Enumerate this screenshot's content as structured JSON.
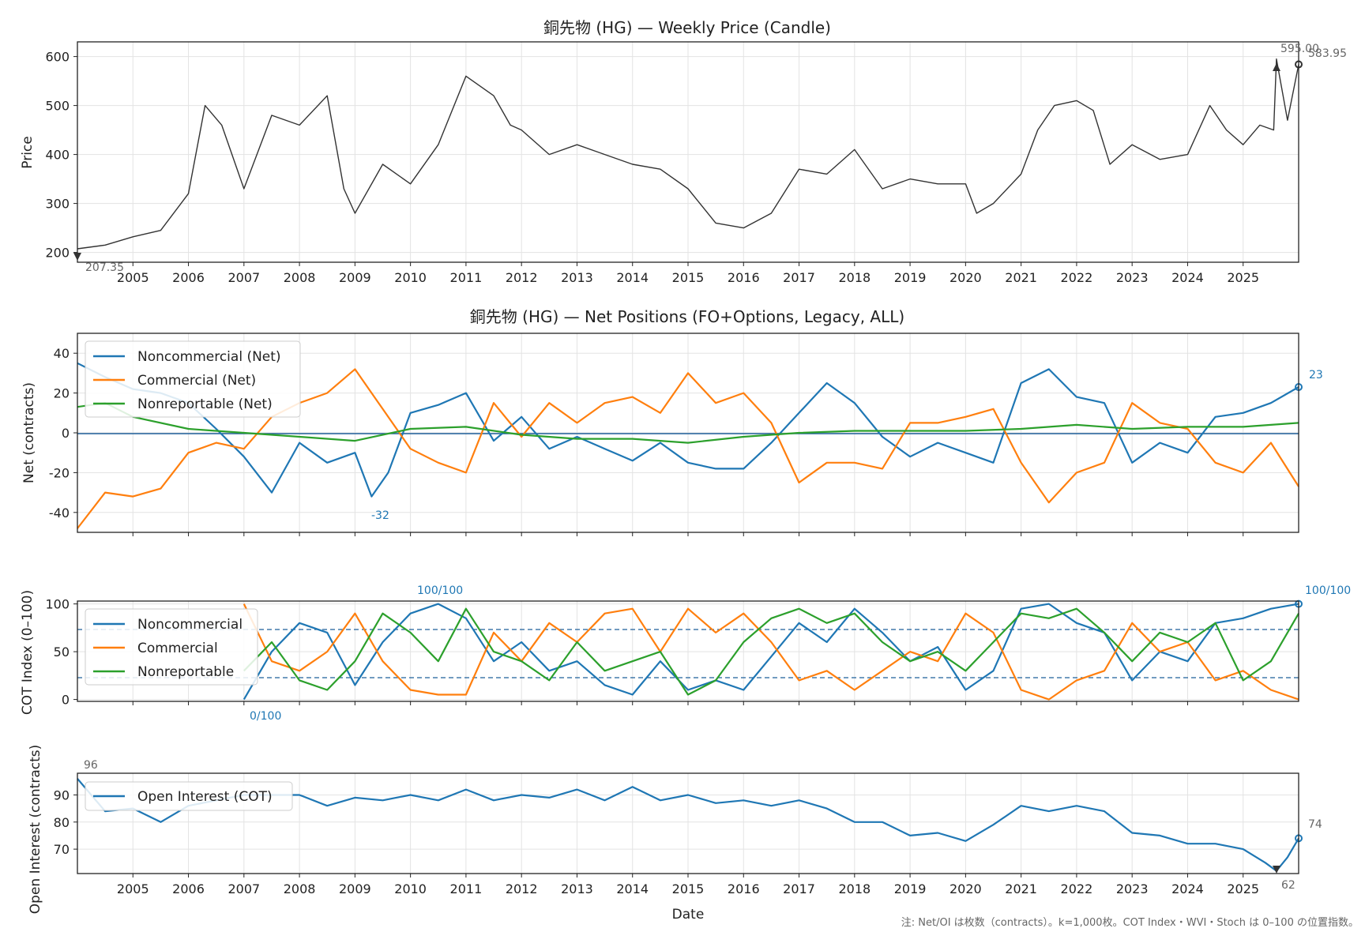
{
  "figure": {
    "note": "注: Net/OI は枚数（contracts）。k=1,000枚。COT Index・WVI・Stoch は 0–100 の位置指数。",
    "xlabel": "Date"
  },
  "colors": {
    "noncommercial": "#1f77b4",
    "commercial": "#ff7f0e",
    "nonreportable": "#2ca02c",
    "price": "#333333",
    "oi": "#1f77b4"
  },
  "chart_data": [
    {
      "type": "line",
      "title": "銅先物 (HG) — Weekly Price (Candle)",
      "ylabel": "Price",
      "xlim": [
        2004.0,
        2026.0
      ],
      "ylim": [
        180,
        630
      ],
      "yticks": [
        200,
        300,
        400,
        500,
        600
      ],
      "xticks": [
        "2005",
        "2006",
        "2007",
        "2008",
        "2009",
        "2010",
        "2011",
        "2012",
        "2013",
        "2014",
        "2015",
        "2016",
        "2017",
        "2018",
        "2019",
        "2020",
        "2021",
        "2022",
        "2023",
        "2024",
        "2025"
      ],
      "grid": true,
      "series": [
        {
          "x": [
            2004.0,
            2004.5,
            2005.0,
            2005.5,
            2006.0,
            2006.3,
            2006.6,
            2007.0,
            2007.5,
            2008.0,
            2008.5,
            2008.8,
            2009.0,
            2009.5,
            2010.0,
            2010.5,
            2011.0,
            2011.5,
            2011.8,
            2012.0,
            2012.5,
            2013.0,
            2013.5,
            2014.0,
            2014.5,
            2015.0,
            2015.5,
            2016.0,
            2016.5,
            2017.0,
            2017.5,
            2018.0,
            2018.5,
            2019.0,
            2019.5,
            2020.0,
            2020.2,
            2020.5,
            2021.0,
            2021.3,
            2021.6,
            2022.0,
            2022.3,
            2022.6,
            2023.0,
            2023.5,
            2024.0,
            2024.4,
            2024.7,
            2025.0,
            2025.3,
            2025.55,
            2025.6,
            2025.8,
            2026.0
          ],
          "values": [
            207.35,
            215,
            232,
            245,
            320,
            500,
            460,
            330,
            480,
            460,
            520,
            330,
            280,
            380,
            340,
            420,
            560,
            520,
            460,
            450,
            400,
            420,
            400,
            380,
            370,
            330,
            260,
            250,
            280,
            370,
            360,
            410,
            330,
            350,
            340,
            340,
            280,
            300,
            360,
            450,
            500,
            510,
            490,
            380,
            420,
            390,
            400,
            500,
            450,
            420,
            460,
            450,
            595,
            470,
            583.95
          ]
        }
      ],
      "annotations": {
        "start": "207.35",
        "high": "595.00",
        "last": "583.95"
      }
    },
    {
      "type": "line",
      "title": "銅先物 (HG) — Net Positions (FO+Options, Legacy, ALL)",
      "ylabel": "Net (contracts)",
      "xlim": [
        2004.0,
        2026.0
      ],
      "ylim": [
        -50,
        50
      ],
      "yticks": [
        -40,
        -20,
        0,
        20,
        40
      ],
      "grid": true,
      "legend": "upper-left",
      "series": [
        {
          "name": "Noncommercial (Net)",
          "x": [
            2004.0,
            2004.5,
            2005.0,
            2005.5,
            2006.0,
            2006.5,
            2007.0,
            2007.5,
            2008.0,
            2008.5,
            2009.0,
            2009.3,
            2009.6,
            2010.0,
            2010.5,
            2011.0,
            2011.5,
            2012.0,
            2012.5,
            2013.0,
            2013.5,
            2014.0,
            2014.5,
            2015.0,
            2015.5,
            2016.0,
            2016.5,
            2017.0,
            2017.5,
            2018.0,
            2018.5,
            2019.0,
            2019.5,
            2020.0,
            2020.5,
            2021.0,
            2021.5,
            2022.0,
            2022.5,
            2023.0,
            2023.5,
            2024.0,
            2024.5,
            2025.0,
            2025.5,
            2026.0
          ],
          "values": [
            35,
            28,
            22,
            20,
            15,
            2,
            -12,
            -30,
            -5,
            -15,
            -10,
            -32,
            -20,
            10,
            14,
            20,
            -4,
            8,
            -8,
            -2,
            -8,
            -14,
            -5,
            -15,
            -18,
            -18,
            -5,
            10,
            25,
            15,
            -2,
            -12,
            -5,
            -10,
            -15,
            25,
            32,
            18,
            15,
            -15,
            -5,
            -10,
            8,
            10,
            15,
            23
          ]
        },
        {
          "name": "Commercial (Net)",
          "x": [
            2004.0,
            2004.5,
            2005.0,
            2005.5,
            2006.0,
            2006.5,
            2007.0,
            2007.5,
            2008.0,
            2008.5,
            2009.0,
            2009.5,
            2010.0,
            2010.5,
            2011.0,
            2011.5,
            2012.0,
            2012.5,
            2013.0,
            2013.5,
            2014.0,
            2014.5,
            2015.0,
            2015.5,
            2016.0,
            2016.5,
            2017.0,
            2017.5,
            2018.0,
            2018.5,
            2019.0,
            2019.5,
            2020.0,
            2020.5,
            2021.0,
            2021.5,
            2022.0,
            2022.5,
            2023.0,
            2023.5,
            2024.0,
            2024.5,
            2025.0,
            2025.5,
            2026.0
          ],
          "values": [
            -48,
            -30,
            -32,
            -28,
            -10,
            -5,
            -8,
            8,
            15,
            20,
            32,
            12,
            -8,
            -15,
            -20,
            15,
            -2,
            15,
            5,
            15,
            18,
            10,
            30,
            15,
            20,
            5,
            -25,
            -15,
            -15,
            -18,
            5,
            5,
            8,
            12,
            -15,
            -35,
            -20,
            -15,
            15,
            5,
            2,
            -15,
            -20,
            -5,
            -27
          ]
        },
        {
          "name": "Nonreportable (Net)",
          "x": [
            2004.0,
            2004.5,
            2005.0,
            2006.0,
            2007.0,
            2008.0,
            2009.0,
            2010.0,
            2011.0,
            2012.0,
            2013.0,
            2014.0,
            2015.0,
            2016.0,
            2017.0,
            2018.0,
            2019.0,
            2020.0,
            2021.0,
            2022.0,
            2023.0,
            2024.0,
            2025.0,
            2026.0
          ],
          "values": [
            13,
            15,
            8,
            2,
            0,
            -2,
            -4,
            2,
            3,
            -1,
            -3,
            -3,
            -5,
            -2,
            0,
            1,
            1,
            1,
            2,
            4,
            2,
            3,
            3,
            5
          ]
        }
      ],
      "annotations": {
        "min": "-32",
        "last": "23"
      }
    },
    {
      "type": "line",
      "title": "",
      "ylabel": "COT Index (0–100)",
      "xlim": [
        2004.0,
        2026.0
      ],
      "ylim": [
        -2,
        103
      ],
      "yticks": [
        0,
        50,
        100
      ],
      "hlines": [
        25,
        75
      ],
      "grid": true,
      "legend": "upper-left",
      "series": [
        {
          "name": "Noncommercial",
          "x": [
            2007.0,
            2007.5,
            2008.0,
            2008.5,
            2009.0,
            2009.5,
            2010.0,
            2010.5,
            2011.0,
            2011.5,
            2012.0,
            2012.5,
            2013.0,
            2013.5,
            2014.0,
            2014.5,
            2015.0,
            2015.5,
            2016.0,
            2016.5,
            2017.0,
            2017.5,
            2018.0,
            2018.5,
            2019.0,
            2019.5,
            2020.0,
            2020.5,
            2021.0,
            2021.5,
            2022.0,
            2022.5,
            2023.0,
            2023.5,
            2024.0,
            2024.5,
            2025.0,
            2025.5,
            2026.0
          ],
          "values": [
            0,
            50,
            80,
            70,
            15,
            60,
            90,
            100,
            85,
            40,
            60,
            30,
            40,
            15,
            5,
            40,
            10,
            20,
            10,
            45,
            80,
            60,
            95,
            70,
            40,
            55,
            10,
            30,
            95,
            100,
            80,
            70,
            20,
            50,
            40,
            80,
            85,
            95,
            100
          ]
        },
        {
          "name": "Commercial",
          "x": [
            2007.0,
            2007.5,
            2008.0,
            2008.5,
            2009.0,
            2009.5,
            2010.0,
            2010.5,
            2011.0,
            2011.5,
            2012.0,
            2012.5,
            2013.0,
            2013.5,
            2014.0,
            2014.5,
            2015.0,
            2015.5,
            2016.0,
            2016.5,
            2017.0,
            2017.5,
            2018.0,
            2018.5,
            2019.0,
            2019.5,
            2020.0,
            2020.5,
            2021.0,
            2021.5,
            2022.0,
            2022.5,
            2023.0,
            2023.5,
            2024.0,
            2024.5,
            2025.0,
            2025.5,
            2026.0
          ],
          "values": [
            100,
            40,
            30,
            50,
            90,
            40,
            10,
            5,
            5,
            70,
            40,
            80,
            60,
            90,
            95,
            50,
            95,
            70,
            90,
            60,
            20,
            30,
            10,
            30,
            50,
            40,
            90,
            70,
            10,
            0,
            20,
            30,
            80,
            50,
            60,
            20,
            30,
            10,
            0
          ]
        },
        {
          "name": "Nonreportable",
          "x": [
            2007.0,
            2007.5,
            2008.0,
            2008.5,
            2009.0,
            2009.5,
            2010.0,
            2010.5,
            2011.0,
            2011.5,
            2012.0,
            2012.5,
            2013.0,
            2013.5,
            2014.0,
            2014.5,
            2015.0,
            2015.5,
            2016.0,
            2016.5,
            2017.0,
            2017.5,
            2018.0,
            2018.5,
            2019.0,
            2019.5,
            2020.0,
            2020.5,
            2021.0,
            2021.5,
            2022.0,
            2022.5,
            2023.0,
            2023.5,
            2024.0,
            2024.5,
            2025.0,
            2025.5,
            2026.0
          ],
          "values": [
            30,
            60,
            20,
            10,
            40,
            90,
            70,
            40,
            95,
            50,
            40,
            20,
            60,
            30,
            40,
            50,
            5,
            20,
            60,
            85,
            95,
            80,
            90,
            60,
            40,
            50,
            30,
            60,
            90,
            85,
            95,
            70,
            40,
            70,
            60,
            80,
            20,
            40,
            90
          ]
        }
      ],
      "annotations": {
        "min": "0/100",
        "max": "100/100",
        "last": "100/100"
      }
    },
    {
      "type": "line",
      "title": "",
      "ylabel": "Open Interest (contracts)",
      "xlabel": "Date",
      "xlim": [
        2004.0,
        2026.0
      ],
      "ylim": [
        61,
        98
      ],
      "yticks": [
        70,
        80,
        90
      ],
      "grid": true,
      "legend": "upper-left",
      "series": [
        {
          "name": "Open Interest (COT)",
          "x": [
            2004.0,
            2004.5,
            2005.0,
            2005.5,
            2006.0,
            2006.5,
            2007.0,
            2007.5,
            2008.0,
            2008.5,
            2009.0,
            2009.5,
            2010.0,
            2010.5,
            2011.0,
            2011.5,
            2012.0,
            2012.5,
            2013.0,
            2013.5,
            2014.0,
            2014.5,
            2015.0,
            2015.5,
            2016.0,
            2016.5,
            2017.0,
            2017.5,
            2018.0,
            2018.5,
            2019.0,
            2019.5,
            2020.0,
            2020.5,
            2021.0,
            2021.5,
            2022.0,
            2022.5,
            2023.0,
            2023.5,
            2024.0,
            2024.5,
            2025.0,
            2025.4,
            2025.6,
            2025.8,
            2026.0
          ],
          "values": [
            96,
            84,
            85,
            80,
            86,
            88,
            90,
            90,
            90,
            86,
            89,
            88,
            90,
            88,
            92,
            88,
            90,
            89,
            92,
            88,
            93,
            88,
            90,
            87,
            88,
            86,
            88,
            85,
            80,
            80,
            75,
            76,
            73,
            79,
            86,
            84,
            86,
            84,
            76,
            75,
            72,
            72,
            70,
            65,
            62,
            67,
            74
          ]
        }
      ],
      "annotations": {
        "max": "96",
        "min": "62",
        "last": "74"
      }
    }
  ]
}
